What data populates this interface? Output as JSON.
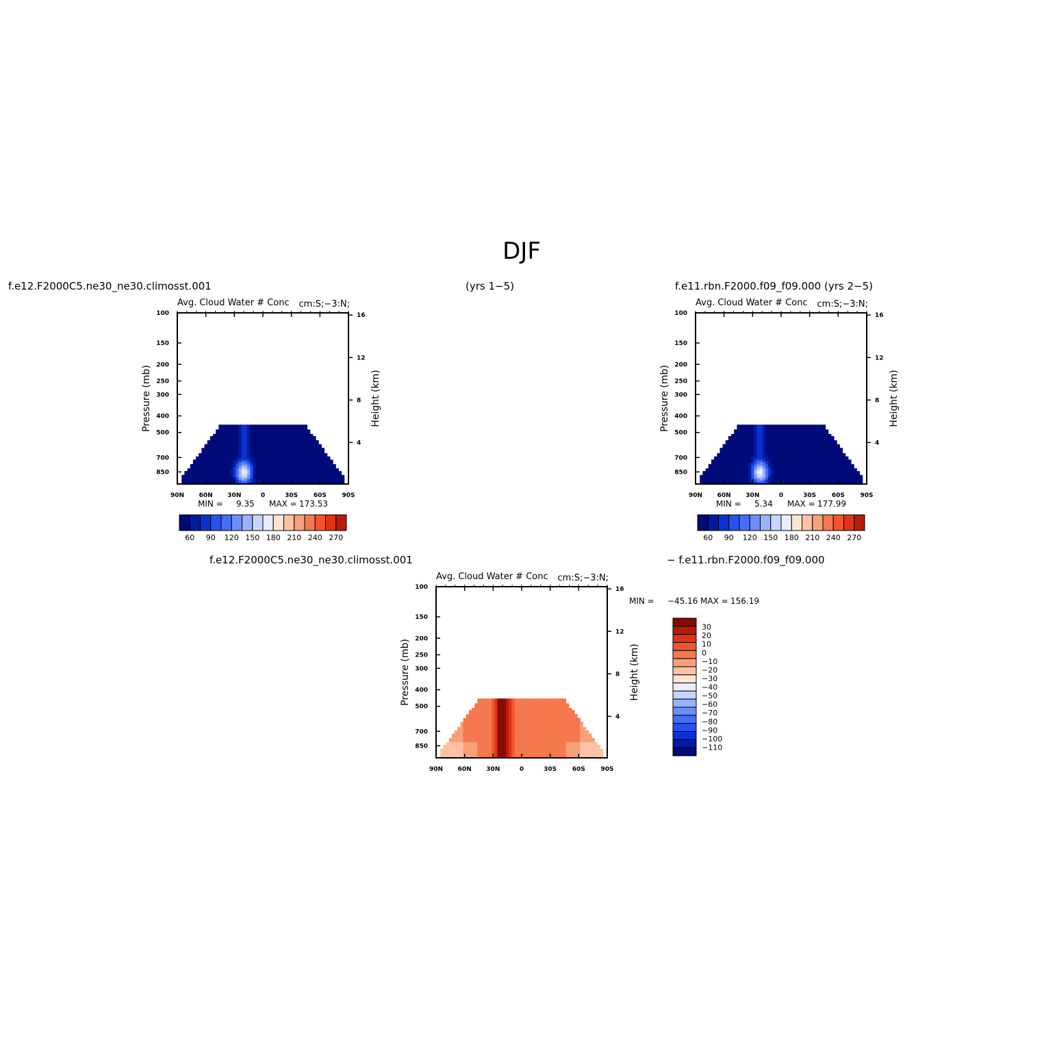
{
  "figure": {
    "title": "DJF",
    "header_left": "f.e12.F2000C5.ne30_ne30.climosst.001",
    "header_mid": "(yrs  1−5)",
    "header_right": "f.e11.rbn.F2000.f09_f09.000  (yrs  2−5)",
    "header_bottom_left": "f.e12.F2000C5.ne30_ne30.climosst.001",
    "header_bottom_right": "−  f.e11.rbn.F2000.f09_f09.000"
  },
  "colors": {
    "blues": [
      "#000a78",
      "#001aa0",
      "#0a32d2",
      "#2850ee",
      "#466ef5",
      "#6e8ff8",
      "#9ab3fb",
      "#c5d6fd",
      "#e8eefe"
    ],
    "reds": [
      "#fde5d3",
      "#fbc3a3",
      "#f8a07a",
      "#f5794e",
      "#f2552c",
      "#e03314",
      "#b81b0a",
      "#840d05"
    ],
    "diff_scale": [
      "#000a78",
      "#001aa0",
      "#0a32d2",
      "#2850ee",
      "#466ef5",
      "#6e8ff8",
      "#9ab3fb",
      "#c5d6fd",
      "#e8eefe",
      "#fde5d3",
      "#fbc3a3",
      "#f8a07a",
      "#f5794e",
      "#f2552c",
      "#e03314",
      "#b81b0a",
      "#840d05"
    ]
  },
  "chart_data": [
    {
      "type": "heatmap",
      "title": "Avg. Cloud Water # Conc",
      "title_right": "cm:S;−3:N;",
      "ylabel": "Pressure (mb)",
      "ylabel_right": "Height (km)",
      "x_ticks": [
        "90N",
        "60N",
        "30N",
        "0",
        "30S",
        "60S",
        "90S"
      ],
      "x_range": [
        90,
        -90
      ],
      "y_ticks": [
        100,
        150,
        200,
        250,
        300,
        400,
        500,
        700,
        850
      ],
      "y_range": [
        100,
        1000
      ],
      "y_scale": "log",
      "height_ticks": [
        16,
        12,
        8,
        4
      ],
      "min_label": "MIN  =",
      "min": "9.35",
      "max_label": "MAX  =",
      "max": "173.53",
      "colorbar_orientation": "horizontal",
      "colorbar_ticks": [
        "60",
        "90",
        "120",
        "150",
        "180",
        "210",
        "240",
        "270"
      ],
      "field_range": [
        9.35,
        173.53
      ],
      "peak_latitude": 20,
      "peak_pressure": 850,
      "top_pressure": 450
    },
    {
      "type": "heatmap",
      "title": "Avg. Cloud Water # Conc",
      "title_right": "cm:S;−3:N;",
      "ylabel": "Pressure (mb)",
      "ylabel_right": "Height (km)",
      "x_ticks": [
        "90N",
        "60N",
        "30N",
        "0",
        "30S",
        "60S",
        "90S"
      ],
      "x_range": [
        90,
        -90
      ],
      "y_ticks": [
        100,
        150,
        200,
        250,
        300,
        400,
        500,
        700,
        850
      ],
      "y_range": [
        100,
        1000
      ],
      "y_scale": "log",
      "height_ticks": [
        16,
        12,
        8,
        4
      ],
      "min_label": "MIN  =",
      "min": "5.34",
      "max_label": "MAX  =",
      "max": "177.99",
      "colorbar_orientation": "horizontal",
      "colorbar_ticks": [
        "60",
        "90",
        "120",
        "150",
        "180",
        "210",
        "240",
        "270"
      ],
      "field_range": [
        5.34,
        177.99
      ],
      "peak_latitude": 22,
      "peak_pressure": 850,
      "top_pressure": 450
    },
    {
      "type": "heatmap",
      "title": "Avg. Cloud Water # Conc",
      "title_right": "cm:S;−3:N;",
      "ylabel": "Pressure (mb)",
      "ylabel_right": "Height (km)",
      "x_ticks": [
        "90N",
        "60N",
        "30N",
        "0",
        "30S",
        "60S",
        "90S"
      ],
      "x_range": [
        90,
        -90
      ],
      "y_ticks": [
        100,
        150,
        200,
        250,
        300,
        400,
        500,
        700,
        850
      ],
      "y_range": [
        100,
        1000
      ],
      "y_scale": "log",
      "height_ticks": [
        16,
        12,
        8,
        4
      ],
      "min_label": "MIN  =",
      "min": "−45.16",
      "max_label": "MAX  =",
      "max": "156.19",
      "colorbar_orientation": "vertical",
      "colorbar_ticks": [
        "30",
        "20",
        "10",
        "0",
        "−10",
        "−20",
        "−30",
        "−40",
        "−50",
        "−60",
        "−70",
        "−80",
        "−90",
        "−100",
        "−110"
      ],
      "field_range": [
        -45.16,
        156.19
      ],
      "peak_latitude": 20,
      "top_pressure": 450
    }
  ]
}
